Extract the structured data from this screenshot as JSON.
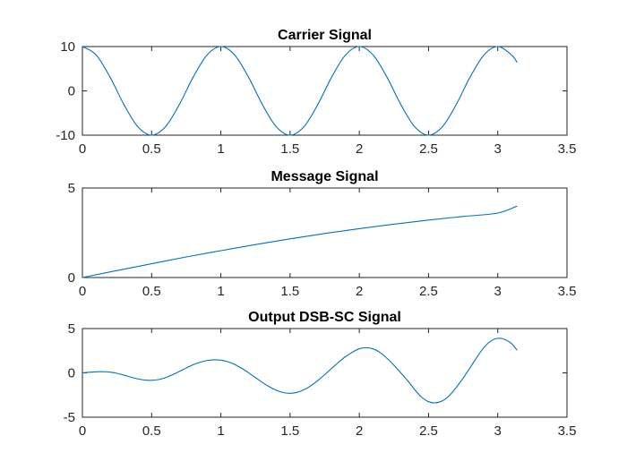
{
  "window": {
    "background": "#ffffff"
  },
  "chart_data": [
    {
      "type": "line",
      "title": "Carrier Signal",
      "xlabel": "",
      "ylabel": "",
      "xlim": [
        0,
        3.5
      ],
      "ylim": [
        -10,
        10
      ],
      "xticks": [
        0,
        0.5,
        1,
        1.5,
        2,
        2.5,
        3,
        3.5
      ],
      "xtick_labels": [
        "0",
        "0.5",
        "1",
        "1.5",
        "2",
        "2.5",
        "3",
        "3.5"
      ],
      "yticks": [
        -10,
        0,
        10
      ],
      "ytick_labels": [
        "-10",
        "0",
        "10"
      ],
      "grid": false,
      "color": "#0072BD",
      "series": [
        {
          "x": [
            0,
            0.1,
            0.2,
            0.3,
            0.4,
            0.5,
            0.6,
            0.7,
            0.8,
            0.9,
            1.0,
            1.1,
            1.2,
            1.3,
            1.4,
            1.5,
            1.6,
            1.7,
            1.8,
            1.9,
            2.0,
            2.1,
            2.2,
            2.3,
            2.4,
            2.5,
            2.6,
            2.7,
            2.8,
            2.9,
            3.0,
            3.1,
            3.14
          ],
          "y": [
            10,
            8.09,
            3.09,
            -3.09,
            -8.09,
            -10,
            -8.09,
            -3.09,
            3.09,
            8.09,
            10,
            8.09,
            3.09,
            -3.09,
            -8.09,
            -10,
            -8.09,
            -3.09,
            3.09,
            8.09,
            10,
            8.09,
            3.09,
            -3.09,
            -8.09,
            -10,
            -8.09,
            -3.09,
            3.09,
            8.09,
            10,
            8.09,
            6.37
          ]
        }
      ]
    },
    {
      "type": "line",
      "title": "Message Signal",
      "xlabel": "",
      "ylabel": "",
      "xlim": [
        0,
        3.5
      ],
      "ylim": [
        0,
        5
      ],
      "xticks": [
        0,
        0.5,
        1,
        1.5,
        2,
        2.5,
        3,
        3.5
      ],
      "xtick_labels": [
        "0",
        "0.5",
        "1",
        "1.5",
        "2",
        "2.5",
        "3",
        "3.5"
      ],
      "yticks": [
        0,
        5
      ],
      "ytick_labels": [
        "0",
        "5"
      ],
      "grid": false,
      "color": "#0072BD",
      "series": [
        {
          "x": [
            0,
            0.25,
            0.5,
            0.75,
            1.0,
            1.25,
            1.5,
            1.75,
            2.0,
            2.25,
            2.5,
            2.75,
            3.0,
            3.14
          ],
          "y": [
            0,
            0.39,
            0.77,
            1.15,
            1.5,
            1.84,
            2.16,
            2.46,
            2.73,
            2.98,
            3.21,
            3.41,
            3.6,
            3.99
          ]
        }
      ]
    },
    {
      "type": "line",
      "title": "Output DSB-SC Signal",
      "xlabel": "",
      "ylabel": "",
      "xlim": [
        0,
        3.5
      ],
      "ylim": [
        -5,
        5
      ],
      "xticks": [
        0,
        0.5,
        1,
        1.5,
        2,
        2.5,
        3,
        3.5
      ],
      "xtick_labels": [
        "0",
        "0.5",
        "1",
        "1.5",
        "2",
        "2.5",
        "3",
        "3.5"
      ],
      "yticks": [
        -5,
        0,
        5
      ],
      "ytick_labels": [
        "-5",
        "0",
        "5"
      ],
      "grid": false,
      "color": "#0072BD",
      "series": [
        {
          "x": [
            0,
            0.05,
            0.1,
            0.15,
            0.2,
            0.25,
            0.3,
            0.35,
            0.4,
            0.45,
            0.5,
            0.55,
            0.6,
            0.65,
            0.7,
            0.75,
            0.8,
            0.85,
            0.9,
            0.95,
            1.0,
            1.05,
            1.1,
            1.15,
            1.2,
            1.25,
            1.3,
            1.35,
            1.4,
            1.45,
            1.5,
            1.55,
            1.6,
            1.65,
            1.7,
            1.75,
            1.8,
            1.85,
            1.9,
            1.95,
            2.0,
            2.05,
            2.1,
            2.15,
            2.2,
            2.25,
            2.3,
            2.35,
            2.4,
            2.45,
            2.5,
            2.55,
            2.6,
            2.65,
            2.7,
            2.75,
            2.8,
            2.85,
            2.9,
            2.95,
            3.0,
            3.05,
            3.1,
            3.14
          ],
          "y": [
            0,
            0.07,
            0.12,
            0.13,
            0.08,
            -0.05,
            -0.26,
            -0.48,
            -0.68,
            -0.81,
            -0.84,
            -0.76,
            -0.54,
            -0.22,
            0.16,
            0.55,
            0.92,
            1.2,
            1.39,
            1.47,
            1.43,
            1.26,
            0.95,
            0.52,
            0.02,
            -0.54,
            -1.08,
            -1.57,
            -1.96,
            -2.22,
            -2.3,
            -2.2,
            -1.91,
            -1.46,
            -0.87,
            -0.2,
            0.5,
            1.2,
            1.83,
            2.33,
            2.72,
            2.84,
            2.71,
            2.29,
            1.64,
            0.86,
            0.0,
            -0.9,
            -1.89,
            -2.74,
            -3.25,
            -3.38,
            -3.16,
            -2.56,
            -1.65,
            -0.59,
            0.58,
            1.77,
            2.86,
            3.59,
            3.9,
            3.78,
            3.29,
            2.55
          ]
        }
      ]
    }
  ]
}
